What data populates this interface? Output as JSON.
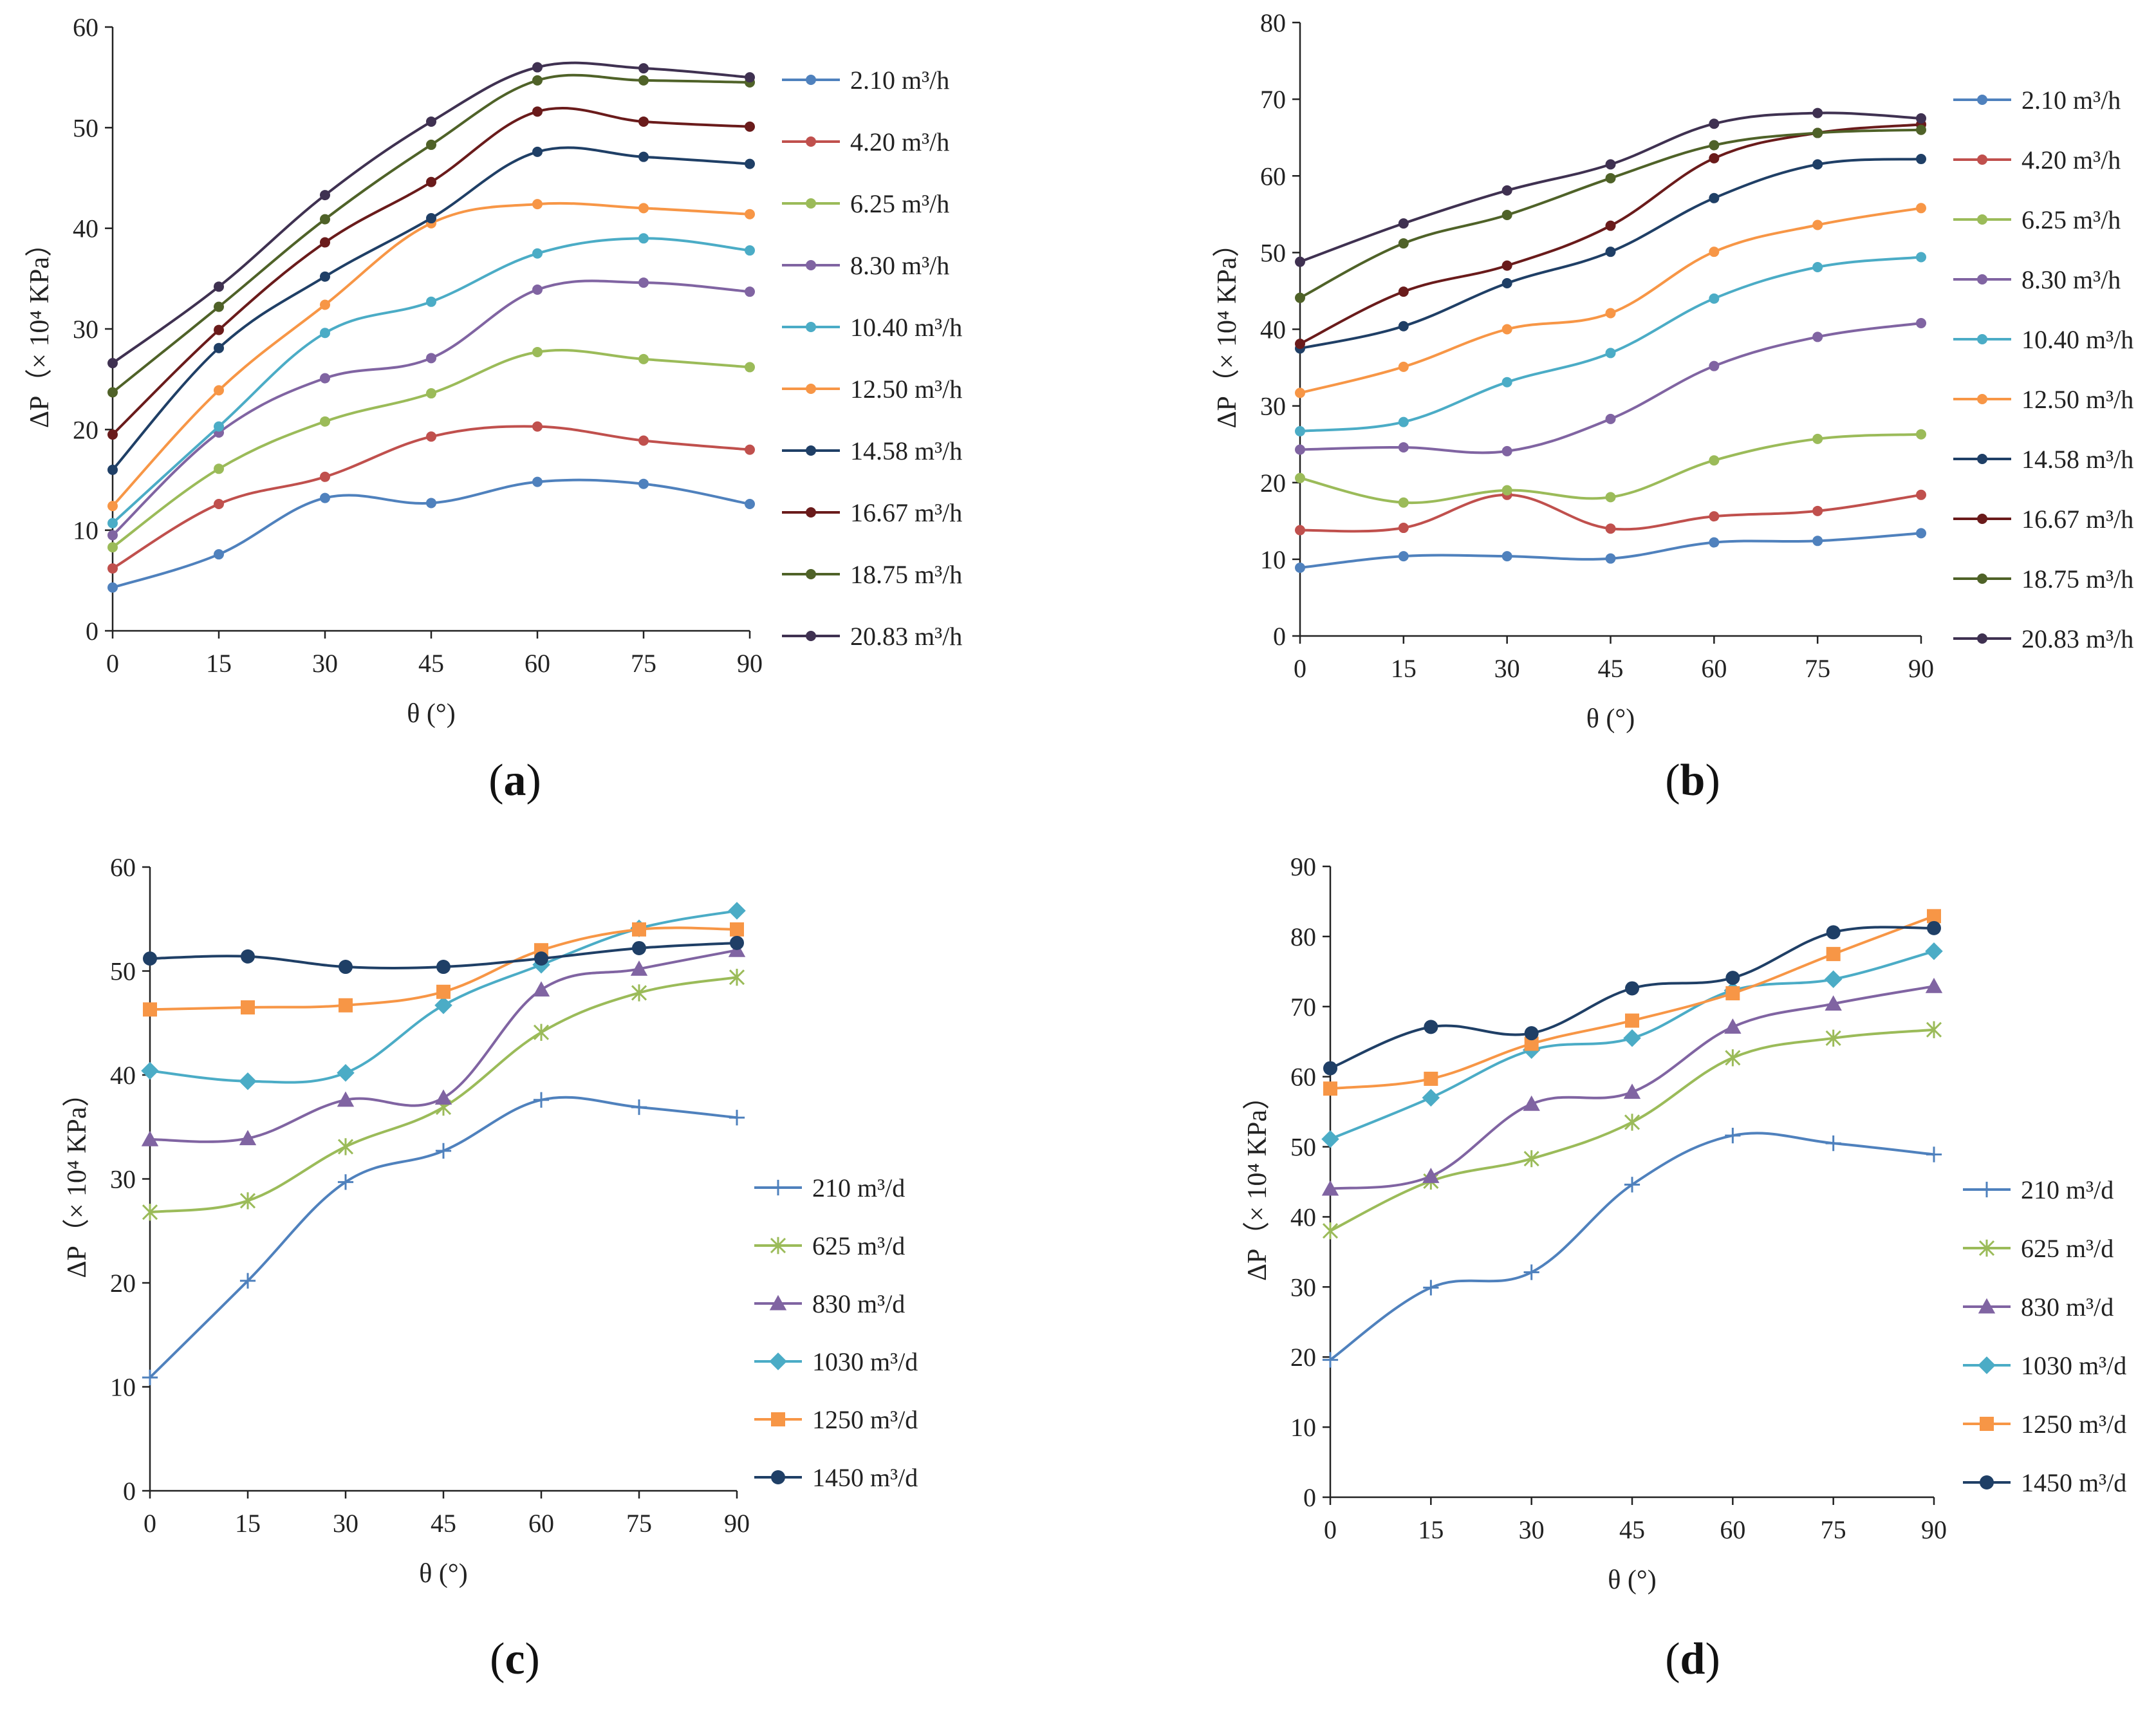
{
  "colors": [
    "#4F81BD",
    "#C0504D",
    "#9BBB59",
    "#8064A2",
    "#4BACC6",
    "#F79646",
    "#1F3F66",
    "#6A1B1B",
    "#4F6228",
    "#3F3151"
  ],
  "colors_cd": [
    "#4F81BD",
    "#9BBB59",
    "#8064A2",
    "#4BACC6",
    "#F79646",
    "#1F3F66"
  ],
  "chart_data": [
    {
      "id": "a",
      "type": "line",
      "panel_label": "a",
      "xlabel": "θ (°)",
      "ylabel": "ΔP（× 10⁴ KPa）",
      "x": [
        0,
        15,
        30,
        45,
        60,
        75,
        90
      ],
      "x_ticks": [
        "0",
        "15",
        "30",
        "45",
        "60",
        "75",
        "90"
      ],
      "ylim": [
        0,
        60
      ],
      "y_ticks": [
        "0",
        "10",
        "20",
        "30",
        "40",
        "50",
        "60"
      ],
      "marker": "circle",
      "legend_position": "right",
      "series": [
        {
          "name": "2.10 m³/h",
          "values": [
            4.3,
            7.6,
            13.2,
            12.7,
            14.8,
            14.6,
            12.6
          ]
        },
        {
          "name": "4.20 m³/h",
          "values": [
            6.2,
            12.6,
            15.3,
            19.3,
            20.3,
            18.9,
            18.0
          ]
        },
        {
          "name": "6.25 m³/h",
          "values": [
            8.3,
            16.1,
            20.8,
            23.6,
            27.7,
            27.0,
            26.2
          ]
        },
        {
          "name": "8.30 m³/h",
          "values": [
            9.5,
            19.7,
            25.1,
            27.1,
            33.9,
            34.6,
            33.7
          ]
        },
        {
          "name": "10.40 m³/h",
          "values": [
            10.7,
            20.3,
            29.6,
            32.7,
            37.5,
            39.0,
            37.8
          ]
        },
        {
          "name": "12.50 m³/h",
          "values": [
            12.4,
            23.9,
            32.4,
            40.5,
            42.4,
            42.0,
            41.4
          ]
        },
        {
          "name": "14.58 m³/h",
          "values": [
            16.0,
            28.1,
            35.2,
            41.0,
            47.6,
            47.1,
            46.4
          ]
        },
        {
          "name": "16.67 m³/h",
          "values": [
            19.5,
            29.9,
            38.6,
            44.6,
            51.6,
            50.6,
            50.1
          ]
        },
        {
          "name": "18.75 m³/h",
          "values": [
            23.7,
            32.2,
            40.9,
            48.3,
            54.7,
            54.7,
            54.5
          ]
        },
        {
          "name": "20.83 m³/h",
          "values": [
            26.6,
            34.2,
            43.3,
            50.6,
            56.0,
            55.9,
            55.0
          ]
        }
      ]
    },
    {
      "id": "b",
      "type": "line",
      "panel_label": "b",
      "xlabel": "θ (°)",
      "ylabel": "ΔP（× 10⁴ KPa）",
      "x": [
        0,
        15,
        30,
        45,
        60,
        75,
        90
      ],
      "x_ticks": [
        "0",
        "15",
        "30",
        "45",
        "60",
        "75",
        "90"
      ],
      "ylim": [
        0,
        80
      ],
      "y_ticks": [
        "0",
        "10",
        "20",
        "30",
        "40",
        "50",
        "60",
        "70",
        "80"
      ],
      "marker": "circle",
      "legend_position": "right",
      "series": [
        {
          "name": "2.10 m³/h",
          "values": [
            8.9,
            10.4,
            10.4,
            10.1,
            12.2,
            12.4,
            13.4
          ]
        },
        {
          "name": "4.20 m³/h",
          "values": [
            13.8,
            14.1,
            18.4,
            14.0,
            15.6,
            16.3,
            18.4
          ]
        },
        {
          "name": "6.25 m³/h",
          "values": [
            20.6,
            17.4,
            19.0,
            18.1,
            22.9,
            25.7,
            26.3
          ]
        },
        {
          "name": "8.30 m³/h",
          "values": [
            24.3,
            24.6,
            24.1,
            28.3,
            35.2,
            39.0,
            40.8
          ]
        },
        {
          "name": "10.40 m³/h",
          "values": [
            26.7,
            27.9,
            33.1,
            36.9,
            44.0,
            48.1,
            49.4
          ]
        },
        {
          "name": "12.50 m³/h",
          "values": [
            31.7,
            35.1,
            40.0,
            42.1,
            50.1,
            53.6,
            55.8
          ]
        },
        {
          "name": "14.58 m³/h",
          "values": [
            37.5,
            40.4,
            46.0,
            50.1,
            57.1,
            61.5,
            62.2
          ]
        },
        {
          "name": "16.67 m³/h",
          "values": [
            38.1,
            44.9,
            48.3,
            53.5,
            62.3,
            65.6,
            66.7
          ]
        },
        {
          "name": "18.75 m³/h",
          "values": [
            44.1,
            51.2,
            54.9,
            59.7,
            64.0,
            65.6,
            66.0
          ]
        },
        {
          "name": "20.83 m³/h",
          "values": [
            48.8,
            53.8,
            58.1,
            61.5,
            66.8,
            68.2,
            67.5
          ]
        }
      ]
    },
    {
      "id": "c",
      "type": "line",
      "panel_label": "c",
      "xlabel": "θ (°)",
      "ylabel": "ΔP（× 10⁴ KPa）",
      "x": [
        0,
        15,
        30,
        45,
        60,
        75,
        90
      ],
      "x_ticks": [
        "0",
        "15",
        "30",
        "45",
        "60",
        "75",
        "90"
      ],
      "ylim": [
        0,
        60
      ],
      "y_ticks": [
        "0",
        "10",
        "20",
        "30",
        "40",
        "50",
        "60"
      ],
      "legend_position": "right",
      "series": [
        {
          "name": "210 m³/d",
          "marker": "plus",
          "values": [
            10.9,
            20.2,
            29.7,
            32.7,
            37.6,
            36.9,
            35.9
          ]
        },
        {
          "name": "625 m³/d",
          "marker": "star",
          "values": [
            26.8,
            27.9,
            33.1,
            36.9,
            44.1,
            47.9,
            49.4
          ]
        },
        {
          "name": "830 m³/d",
          "marker": "triangle",
          "values": [
            33.8,
            33.9,
            37.6,
            37.8,
            48.2,
            50.2,
            52.0
          ]
        },
        {
          "name": "1030 m³/d",
          "marker": "diamond",
          "values": [
            40.4,
            39.4,
            40.2,
            46.7,
            50.6,
            54.1,
            55.8
          ]
        },
        {
          "name": "1250 m³/d",
          "marker": "square",
          "values": [
            46.3,
            46.5,
            46.7,
            48.0,
            52.0,
            54.0,
            54.0
          ]
        },
        {
          "name": "1450 m³/d",
          "marker": "circle",
          "values": [
            51.2,
            51.4,
            50.4,
            50.4,
            51.2,
            52.2,
            52.7
          ]
        }
      ]
    },
    {
      "id": "d",
      "type": "line",
      "panel_label": "d",
      "xlabel": "θ (°)",
      "ylabel": "ΔP（× 10⁴ KPa）",
      "x": [
        0,
        15,
        30,
        45,
        60,
        75,
        90
      ],
      "x_ticks": [
        "0",
        "15",
        "30",
        "45",
        "60",
        "75",
        "90"
      ],
      "ylim": [
        0,
        90
      ],
      "y_ticks": [
        "0",
        "10",
        "20",
        "30",
        "40",
        "50",
        "60",
        "70",
        "80",
        "90"
      ],
      "legend_position": "right",
      "series": [
        {
          "name": "210 m³/d",
          "marker": "plus",
          "values": [
            19.6,
            29.9,
            32.1,
            44.6,
            51.6,
            50.5,
            48.9
          ]
        },
        {
          "name": "625 m³/d",
          "marker": "star",
          "values": [
            38.0,
            45.1,
            48.3,
            53.5,
            62.7,
            65.5,
            66.7
          ]
        },
        {
          "name": "830 m³/d",
          "marker": "triangle",
          "values": [
            44.0,
            45.8,
            56.1,
            57.8,
            67.1,
            70.4,
            72.9
          ]
        },
        {
          "name": "1030 m³/d",
          "marker": "diamond",
          "values": [
            51.1,
            57.0,
            63.8,
            65.5,
            72.3,
            73.9,
            77.9
          ]
        },
        {
          "name": "1250 m³/d",
          "marker": "square",
          "values": [
            58.3,
            59.7,
            64.7,
            68.0,
            71.9,
            77.5,
            82.9
          ]
        },
        {
          "name": "1450 m³/d",
          "marker": "circle",
          "values": [
            61.2,
            67.1,
            66.2,
            72.6,
            74.1,
            80.6,
            81.2
          ]
        }
      ]
    }
  ]
}
